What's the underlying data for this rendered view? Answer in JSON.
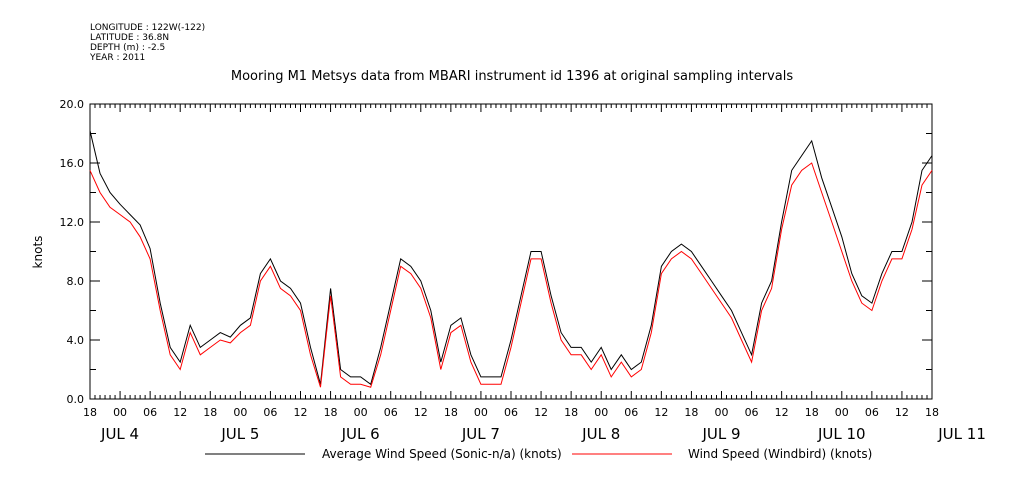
{
  "header": {
    "longitude": "LONGITUDE : 122W(-122)",
    "latitude": "LATITUDE : 36.8N",
    "depth": "DEPTH (m) : -2.5",
    "year": "YEAR : 2011"
  },
  "chart_data": {
    "type": "line",
    "title": "Mooring M1 Metsys data from MBARI instrument id 1396 at original sampling intervals",
    "xlabel": "",
    "ylabel": "knots",
    "ylim": [
      0,
      20
    ],
    "xlim_hours": [
      0,
      168
    ],
    "yticks": [
      "0.0",
      "4.0",
      "8.0",
      "12.0",
      "16.0",
      "20.0"
    ],
    "x_hour_ticks": [
      "18",
      "00",
      "06",
      "12",
      "18",
      "00",
      "06",
      "12",
      "18",
      "00",
      "06",
      "12",
      "18",
      "00",
      "06",
      "12",
      "18",
      "00",
      "06",
      "12",
      "18",
      "00",
      "06",
      "12",
      "18",
      "00",
      "06",
      "12",
      "18"
    ],
    "day_labels": [
      "JUL  4",
      "JUL  5",
      "JUL  6",
      "JUL  7",
      "JUL  8",
      "JUL  9",
      "JUL 10",
      "JUL 11"
    ],
    "grid": false,
    "legend_placement": "bottom",
    "series": [
      {
        "name": "Average Wind Speed (Sonic-n/a) (knots)",
        "color": "#000000",
        "x_hours": [
          0,
          2,
          4,
          6,
          8,
          10,
          12,
          14,
          16,
          18,
          20,
          22,
          24,
          26,
          28,
          30,
          32,
          34,
          36,
          38,
          40,
          42,
          44,
          46,
          48,
          50,
          52,
          54,
          56,
          58,
          60,
          62,
          64,
          66,
          68,
          70,
          72,
          74,
          76,
          78,
          80,
          82,
          84,
          86,
          88,
          90,
          92,
          94,
          96,
          98,
          100,
          102,
          104,
          106,
          108,
          110,
          112,
          114,
          116,
          118,
          120,
          122,
          124,
          126,
          128,
          130,
          132,
          134,
          136,
          138,
          140,
          142,
          144,
          146,
          148,
          150,
          152,
          154,
          156,
          158,
          160,
          162,
          164,
          166,
          168
        ],
        "values": [
          18.2,
          15.3,
          14.0,
          13.2,
          12.5,
          11.8,
          10.2,
          6.5,
          3.5,
          2.5,
          5.0,
          3.5,
          4.0,
          4.5,
          4.2,
          5.0,
          5.5,
          8.5,
          9.5,
          8.0,
          7.5,
          6.5,
          3.5,
          1.0,
          7.5,
          2.0,
          1.5,
          1.5,
          1.0,
          3.5,
          6.5,
          9.5,
          9.0,
          8.0,
          6.0,
          2.5,
          5.0,
          5.5,
          3.0,
          1.5,
          1.5,
          1.5,
          4.0,
          7.0,
          10.0,
          10.0,
          7.0,
          4.5,
          3.5,
          3.5,
          2.5,
          3.5,
          2.0,
          3.0,
          2.0,
          2.5,
          5.0,
          9.0,
          10.0,
          10.5,
          10.0,
          9.0,
          8.0,
          7.0,
          6.0,
          4.5,
          3.0,
          6.5,
          8.0,
          12.0,
          15.5,
          16.5,
          17.5,
          15.0,
          13.0,
          11.0,
          8.5,
          7.0,
          6.5,
          8.5,
          10.0,
          10.0,
          12.0,
          15.5,
          16.5
        ]
      },
      {
        "name": "Wind Speed (Windbird) (knots)",
        "color": "#ff0000",
        "x_hours": [
          0,
          2,
          4,
          6,
          8,
          10,
          12,
          14,
          16,
          18,
          20,
          22,
          24,
          26,
          28,
          30,
          32,
          34,
          36,
          38,
          40,
          42,
          44,
          46,
          48,
          50,
          52,
          54,
          56,
          58,
          60,
          62,
          64,
          66,
          68,
          70,
          72,
          74,
          76,
          78,
          80,
          82,
          84,
          86,
          88,
          90,
          92,
          94,
          96,
          98,
          100,
          102,
          104,
          106,
          108,
          110,
          112,
          114,
          116,
          118,
          120,
          122,
          124,
          126,
          128,
          130,
          132,
          134,
          136,
          138,
          140,
          142,
          144,
          146,
          148,
          150,
          152,
          154,
          156,
          158,
          160,
          162,
          164,
          166,
          168
        ],
        "values": [
          15.5,
          14.0,
          13.0,
          12.5,
          12.0,
          11.0,
          9.5,
          6.0,
          3.0,
          2.0,
          4.5,
          3.0,
          3.5,
          4.0,
          3.8,
          4.5,
          5.0,
          8.0,
          9.0,
          7.5,
          7.0,
          6.0,
          3.0,
          0.8,
          7.0,
          1.5,
          1.0,
          1.0,
          0.8,
          3.0,
          6.0,
          9.0,
          8.5,
          7.5,
          5.5,
          2.0,
          4.5,
          5.0,
          2.5,
          1.0,
          1.0,
          1.0,
          3.5,
          6.5,
          9.5,
          9.5,
          6.5,
          4.0,
          3.0,
          3.0,
          2.0,
          3.0,
          1.5,
          2.5,
          1.5,
          2.0,
          4.5,
          8.5,
          9.5,
          10.0,
          9.5,
          8.5,
          7.5,
          6.5,
          5.5,
          4.0,
          2.5,
          6.0,
          7.5,
          11.5,
          14.5,
          15.5,
          16.0,
          14.0,
          12.0,
          10.0,
          8.0,
          6.5,
          6.0,
          8.0,
          9.5,
          9.5,
          11.5,
          14.5,
          15.5
        ]
      }
    ]
  }
}
